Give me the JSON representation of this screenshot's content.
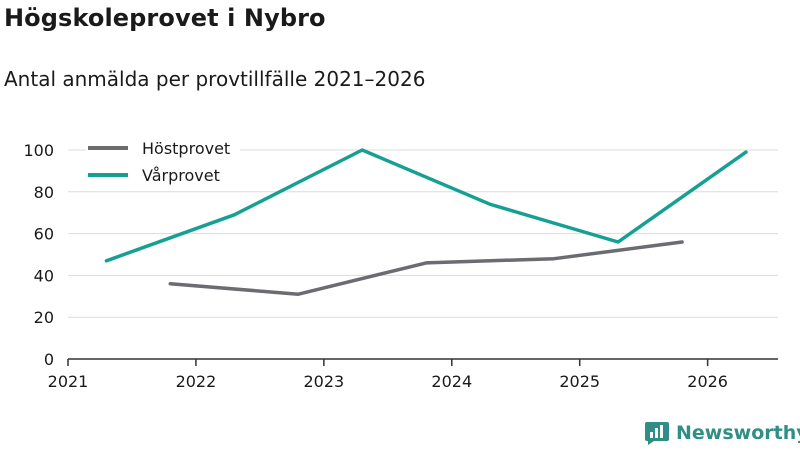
{
  "header": {
    "title": "Högskoleprovet i Nybro",
    "subtitle": "Antal anmälda per provtillfälle 2021–2026"
  },
  "brand": {
    "name": "Newsworthy",
    "color": "#2f8f86"
  },
  "chart_data": {
    "type": "line",
    "title": "Högskoleprovet i Nybro",
    "subtitle": "Antal anmälda per provtillfälle 2021–2026",
    "xlabel": "",
    "ylabel": "",
    "xlim": [
      2021,
      2026.55
    ],
    "ylim": [
      0,
      100
    ],
    "yticks": [
      0,
      20,
      40,
      60,
      80,
      100
    ],
    "xticks": [
      2021,
      2022,
      2023,
      2024,
      2025,
      2026
    ],
    "xtick_labels": [
      "2021",
      "2022",
      "2023",
      "2024",
      "2025",
      "2026"
    ],
    "grid": true,
    "legend_position": "top-left",
    "series": [
      {
        "name": "Höstprovet",
        "color": "#6b6b72",
        "points": [
          [
            2021.8,
            36
          ],
          [
            2022.8,
            31
          ],
          [
            2023.8,
            46
          ],
          [
            2024.8,
            48
          ],
          [
            2025.8,
            56
          ]
        ]
      },
      {
        "name": "Vårprovet",
        "color": "#16a093",
        "points": [
          [
            2021.3,
            47
          ],
          [
            2022.3,
            69
          ],
          [
            2023.3,
            100
          ],
          [
            2024.3,
            74
          ],
          [
            2025.3,
            56
          ],
          [
            2026.3,
            99
          ]
        ]
      }
    ]
  }
}
